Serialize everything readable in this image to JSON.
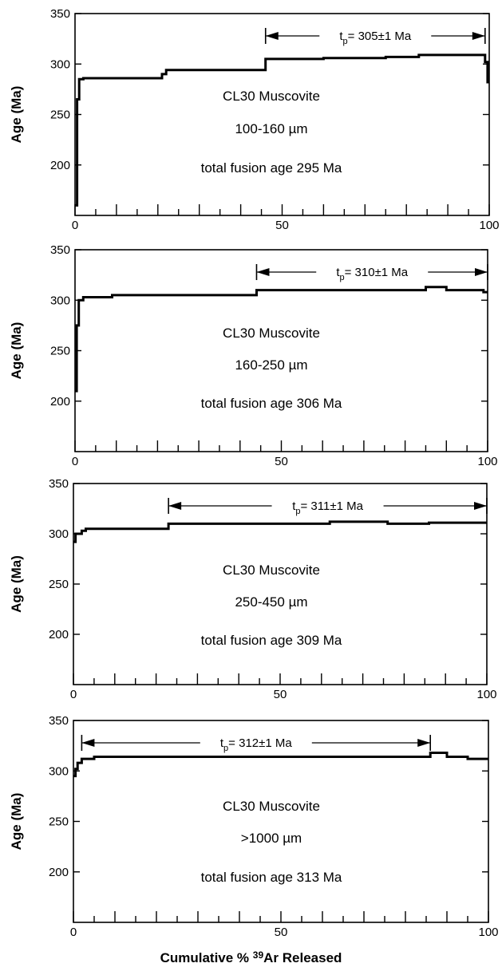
{
  "chart_data": [
    {
      "type": "line",
      "ylabel": "Age (Ma)",
      "xlim": [
        0,
        100
      ],
      "ylim": [
        150,
        350
      ],
      "yticks": [
        200,
        250,
        300,
        350
      ],
      "xticks": [
        0,
        50,
        100
      ],
      "annotations": [
        "CL30 Muscovite",
        "100-160 µm",
        "total fusion age 295 Ma"
      ],
      "plateau": {
        "label": "t",
        "sub": "p",
        "text": "= 305±1 Ma",
        "x_start": 46,
        "x_end": 99
      },
      "steps": [
        {
          "x0": 0,
          "x1": 0.5,
          "y": 160
        },
        {
          "x0": 0.5,
          "x1": 1,
          "y": 265
        },
        {
          "x0": 1,
          "x1": 2,
          "y": 285
        },
        {
          "x0": 2,
          "x1": 21,
          "y": 286
        },
        {
          "x0": 21,
          "x1": 22,
          "y": 290
        },
        {
          "x0": 22,
          "x1": 46,
          "y": 294
        },
        {
          "x0": 46,
          "x1": 60,
          "y": 305
        },
        {
          "x0": 60,
          "x1": 75,
          "y": 306
        },
        {
          "x0": 75,
          "x1": 83,
          "y": 307
        },
        {
          "x0": 83,
          "x1": 99,
          "y": 309
        },
        {
          "x0": 99,
          "x1": 99.6,
          "y": 302
        },
        {
          "x0": 99.6,
          "x1": 100,
          "y": 282
        }
      ]
    },
    {
      "type": "line",
      "ylabel": "Age (Ma)",
      "xlim": [
        0,
        100
      ],
      "ylim": [
        150,
        350
      ],
      "yticks": [
        200,
        250,
        300,
        350
      ],
      "xticks": [
        0,
        50,
        100
      ],
      "annotations": [
        "CL30 Muscovite",
        "160-250 µm",
        "total fusion age 306 Ma"
      ],
      "plateau": {
        "label": "t",
        "sub": "p",
        "text": "= 310±1 Ma",
        "x_start": 44,
        "x_end": 100
      },
      "steps": [
        {
          "x0": 0,
          "x1": 0.4,
          "y": 210
        },
        {
          "x0": 0.4,
          "x1": 0.9,
          "y": 275
        },
        {
          "x0": 0.9,
          "x1": 2,
          "y": 300
        },
        {
          "x0": 2,
          "x1": 9,
          "y": 303
        },
        {
          "x0": 9,
          "x1": 44,
          "y": 305
        },
        {
          "x0": 44,
          "x1": 85,
          "y": 310
        },
        {
          "x0": 85,
          "x1": 90,
          "y": 313
        },
        {
          "x0": 90,
          "x1": 99,
          "y": 310
        },
        {
          "x0": 99,
          "x1": 100,
          "y": 308
        }
      ]
    },
    {
      "type": "line",
      "ylabel": "Age (Ma)",
      "xlim": [
        0,
        100
      ],
      "ylim": [
        150,
        350
      ],
      "yticks": [
        200,
        250,
        300,
        350
      ],
      "xticks": [
        0,
        50,
        100
      ],
      "annotations": [
        "CL30 Muscovite",
        "250-450 µm",
        "total fusion age 309 Ma"
      ],
      "plateau": {
        "label": "t",
        "sub": "p",
        "text": "= 311±1 Ma",
        "x_start": 23,
        "x_end": 100
      },
      "steps": [
        {
          "x0": 0,
          "x1": 0.5,
          "y": 292
        },
        {
          "x0": 0.5,
          "x1": 2,
          "y": 300
        },
        {
          "x0": 2,
          "x1": 3,
          "y": 303
        },
        {
          "x0": 3,
          "x1": 23,
          "y": 305
        },
        {
          "x0": 23,
          "x1": 62,
          "y": 310
        },
        {
          "x0": 62,
          "x1": 76,
          "y": 312
        },
        {
          "x0": 76,
          "x1": 86,
          "y": 310
        },
        {
          "x0": 86,
          "x1": 100,
          "y": 311
        }
      ]
    },
    {
      "type": "line",
      "ylabel": "Age (Ma)",
      "xlim": [
        0,
        100
      ],
      "ylim": [
        150,
        350
      ],
      "yticks": [
        200,
        250,
        300,
        350
      ],
      "xticks": [
        0,
        50,
        100
      ],
      "annotations": [
        "CL30 Muscovite",
        ">1000 µm",
        "total fusion age 313 Ma"
      ],
      "plateau": {
        "label": "t",
        "sub": "p",
        "text": "= 312±1 Ma",
        "x_start": 2,
        "x_end": 86
      },
      "steps": [
        {
          "x0": 0,
          "x1": 0.5,
          "y": 295
        },
        {
          "x0": 0.5,
          "x1": 1,
          "y": 302
        },
        {
          "x0": 1,
          "x1": 2,
          "y": 308
        },
        {
          "x0": 2,
          "x1": 5,
          "y": 312
        },
        {
          "x0": 5,
          "x1": 86,
          "y": 314
        },
        {
          "x0": 86,
          "x1": 90,
          "y": 318
        },
        {
          "x0": 90,
          "x1": 95,
          "y": 314
        },
        {
          "x0": 95,
          "x1": 100,
          "y": 312
        }
      ]
    }
  ],
  "x_axis_label": {
    "prefix": "Cumulative % ",
    "superscript": "39",
    "suffix": "Ar Released"
  }
}
